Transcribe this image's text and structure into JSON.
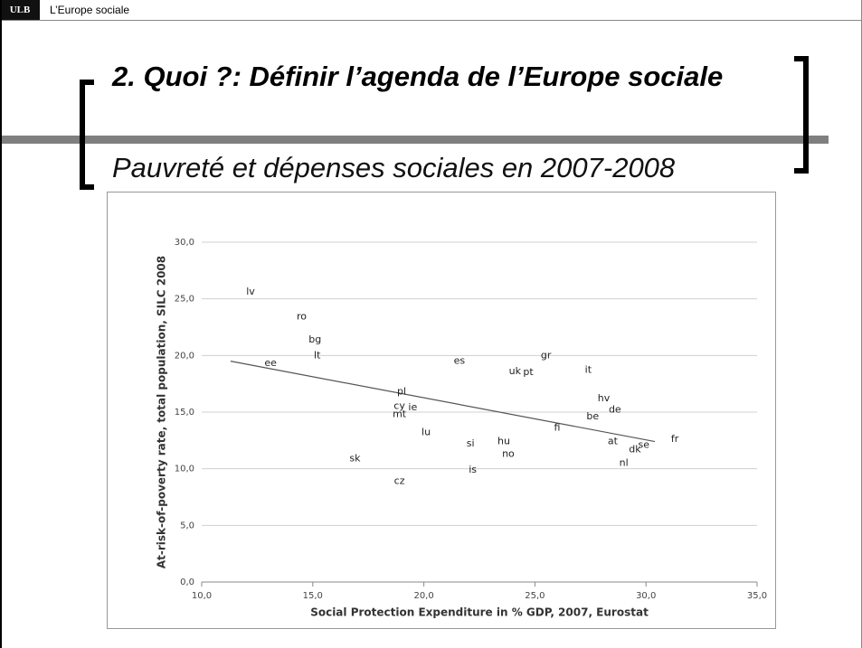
{
  "header": {
    "logo": "ULB",
    "title": "L’Europe sociale"
  },
  "slide": {
    "title": "2. Quoi ?: Définir l’agenda de l’Europe sociale",
    "subtitle": "Pauvreté et dépenses sociales en 2007-2008"
  },
  "chart_data": {
    "type": "scatter",
    "x_label": "Social Protection Expenditure in % GDP, 2007, Eurostat",
    "y_label": "At-risk-of-poverty rate, total population, SILC 2008",
    "xlim": [
      10,
      35
    ],
    "ylim": [
      0,
      30
    ],
    "xticks": [
      {
        "value": 10,
        "label": "10,0"
      },
      {
        "value": 15,
        "label": "15,0"
      },
      {
        "value": 20,
        "label": "20,0"
      },
      {
        "value": 25,
        "label": "25,0"
      },
      {
        "value": 30,
        "label": "30,0"
      },
      {
        "value": 35,
        "label": "35,0"
      }
    ],
    "yticks": [
      {
        "value": 0,
        "label": "0,0"
      },
      {
        "value": 5,
        "label": "5,0"
      },
      {
        "value": 10,
        "label": "10,0"
      },
      {
        "value": 15,
        "label": "15,0"
      },
      {
        "value": 20,
        "label": "20,0"
      },
      {
        "value": 25,
        "label": "25,0"
      },
      {
        "value": 30,
        "label": "30,0"
      }
    ],
    "grid": true,
    "series": [
      {
        "color": "#222222",
        "labels": [
          "lv",
          "ro",
          "bg",
          "lt",
          "ee",
          "es",
          "gr",
          "uk",
          "pt",
          "it",
          "pl",
          "cy",
          "ie",
          "mt",
          "hv",
          "de",
          "be",
          "lu",
          "fi",
          "si",
          "hu",
          "no",
          "at",
          "dk",
          "se",
          "fr",
          "sk",
          "is",
          "nl",
          "cz"
        ],
        "x": [
          12.2,
          14.5,
          15.1,
          15.2,
          13.1,
          21.6,
          25.5,
          24.1,
          24.7,
          27.4,
          19.0,
          18.9,
          19.5,
          18.9,
          28.1,
          28.6,
          27.6,
          20.1,
          26.0,
          22.1,
          23.6,
          23.8,
          28.5,
          29.5,
          29.9,
          31.3,
          16.9,
          22.2,
          29.0,
          18.9
        ],
        "y": [
          25.6,
          23.4,
          21.4,
          20.0,
          19.3,
          19.5,
          20.0,
          18.6,
          18.5,
          18.7,
          16.8,
          15.5,
          15.4,
          14.8,
          16.2,
          15.2,
          14.6,
          13.2,
          13.6,
          12.2,
          12.4,
          11.3,
          12.4,
          11.7,
          12.1,
          12.6,
          10.9,
          9.9,
          10.5,
          8.9
        ]
      }
    ],
    "trendline": {
      "color": "#555555",
      "x": [
        11.3,
        30.4
      ],
      "y": [
        19.5,
        12.4
      ]
    }
  }
}
